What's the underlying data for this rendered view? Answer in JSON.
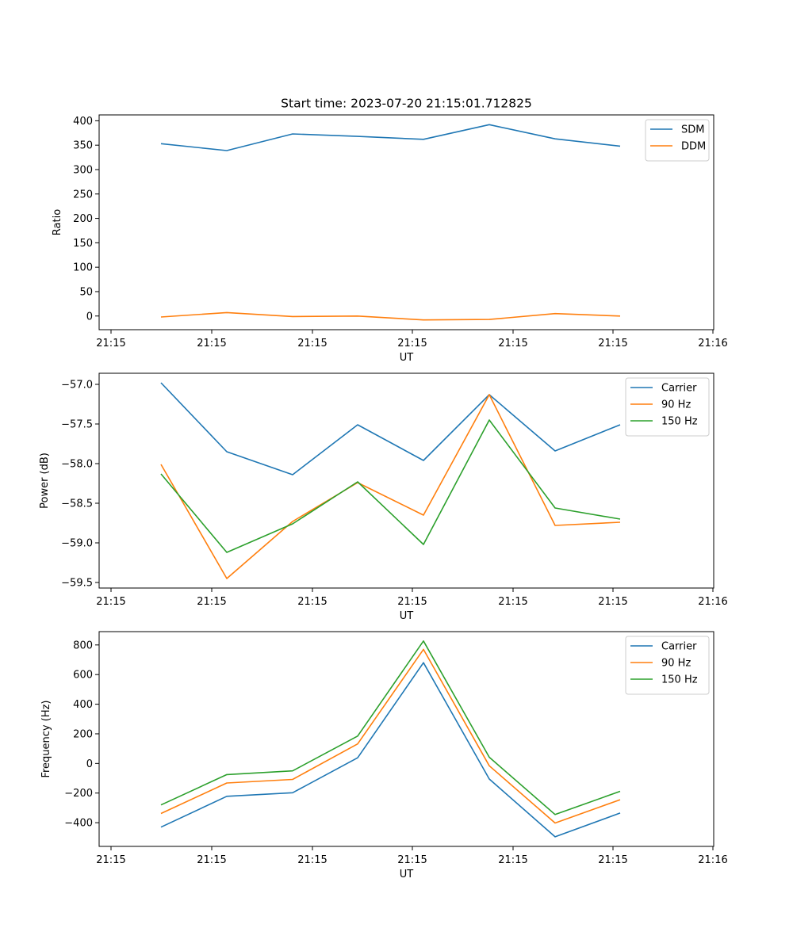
{
  "figure": {
    "title": "Start time: 2023-07-20 21:15:01.712825"
  },
  "chart_data": [
    {
      "type": "line",
      "xlabel": "UT",
      "ylabel": "Ratio",
      "x_tick_labels": [
        "21:15",
        "21:15",
        "21:15",
        "21:15",
        "21:15",
        "21:15",
        "21:16"
      ],
      "x_points": 8,
      "ylim": [
        -28,
        412
      ],
      "y_ticks": [
        0,
        50,
        100,
        150,
        200,
        250,
        300,
        350,
        400
      ],
      "legend_position": "top-right",
      "series": [
        {
          "name": "SDM",
          "color": "#1f77b4",
          "values": [
            353,
            339,
            373,
            368,
            362,
            392,
            363,
            348
          ]
        },
        {
          "name": "DDM",
          "color": "#ff7f0e",
          "values": [
            -2,
            7,
            -1,
            0,
            -8,
            -7,
            5,
            0
          ]
        }
      ]
    },
    {
      "type": "line",
      "xlabel": "UT",
      "ylabel": "Power (dB)",
      "x_tick_labels": [
        "21:15",
        "21:15",
        "21:15",
        "21:15",
        "21:15",
        "21:15",
        "21:16"
      ],
      "x_points": 8,
      "ylim": [
        -59.57,
        -56.86
      ],
      "y_ticks": [
        -59.5,
        -59.0,
        -58.5,
        -58.0,
        -57.5,
        -57.0
      ],
      "legend_position": "top-right",
      "series": [
        {
          "name": "Carrier",
          "color": "#1f77b4",
          "values": [
            -56.98,
            -57.85,
            -58.14,
            -57.51,
            -57.96,
            -57.13,
            -57.84,
            -57.51
          ]
        },
        {
          "name": "90 Hz",
          "color": "#ff7f0e",
          "values": [
            -58.01,
            -59.45,
            -58.73,
            -58.24,
            -58.65,
            -57.13,
            -58.78,
            -58.74
          ]
        },
        {
          "name": "150 Hz",
          "color": "#2ca02c",
          "values": [
            -58.13,
            -59.12,
            -58.76,
            -58.23,
            -59.02,
            -57.45,
            -58.56,
            -58.7
          ]
        }
      ]
    },
    {
      "type": "line",
      "xlabel": "UT",
      "ylabel": "Frequency (Hz)",
      "x_tick_labels": [
        "21:15",
        "21:15",
        "21:15",
        "21:15",
        "21:15",
        "21:15",
        "21:16"
      ],
      "x_points": 8,
      "ylim": [
        -560,
        890
      ],
      "y_ticks": [
        -400,
        -200,
        0,
        200,
        400,
        600,
        800
      ],
      "legend_position": "top-right",
      "series": [
        {
          "name": "Carrier",
          "color": "#1f77b4",
          "values": [
            -430,
            -222,
            -198,
            38,
            680,
            -105,
            -495,
            -335
          ]
        },
        {
          "name": "90 Hz",
          "color": "#ff7f0e",
          "values": [
            -338,
            -132,
            -108,
            132,
            770,
            -16,
            -402,
            -245
          ]
        },
        {
          "name": "150 Hz",
          "color": "#2ca02c",
          "values": [
            -280,
            -75,
            -50,
            185,
            827,
            42,
            -345,
            -188
          ]
        }
      ]
    }
  ]
}
